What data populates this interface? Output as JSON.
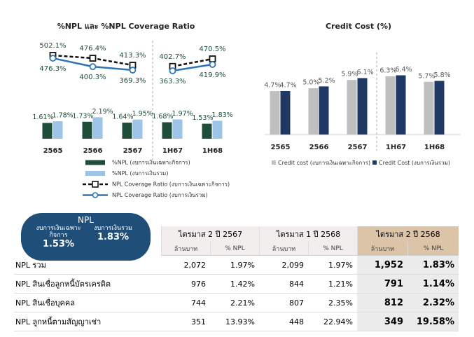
{
  "chart_data": [
    {
      "type": "combo",
      "title": "%NPL และ %NPL Coverage Ratio",
      "categories": [
        "2565",
        "2566",
        "2567",
        "1H67",
        "1H68"
      ],
      "divider_before": "1H67",
      "series": [
        {
          "name": "%NPL (งบการเงินเฉพาะกิจการ)",
          "type": "bar",
          "color": "#1e4d3a",
          "values": [
            1.61,
            1.73,
            1.64,
            1.68,
            1.53
          ],
          "value_labels": [
            "1.61%",
            "1.73%",
            "1.64%",
            "1.68%",
            "1.53%"
          ]
        },
        {
          "name": "%NPL (งบการเงินรวม)",
          "type": "bar",
          "color": "#9dc3e6",
          "values": [
            1.78,
            2.19,
            1.95,
            1.97,
            1.83
          ],
          "value_labels": [
            "1.78%",
            "2.19%",
            "1.95%",
            "1.97%",
            "1.83%"
          ]
        },
        {
          "name": "NPL Coverage Ratio (งบการเงินเฉพาะกิจการ)",
          "type": "line",
          "style": "dashed",
          "marker": "square",
          "color": "#111111",
          "values": [
            502.1,
            476.4,
            413.3,
            402.7,
            470.5
          ],
          "value_labels": [
            "502.1%",
            "476.4%",
            "413.3%",
            "402.7%",
            "470.5%"
          ]
        },
        {
          "name": "NPL Coverage Ratio (งบการเงินรวม)",
          "type": "line",
          "style": "solid",
          "marker": "circle",
          "color": "#2e75b6",
          "values": [
            476.3,
            400.3,
            369.3,
            363.3,
            419.9
          ],
          "value_labels": [
            "476.3%",
            "400.3%",
            "369.3%",
            "363.3%",
            "419.9%"
          ]
        }
      ]
    },
    {
      "type": "bar",
      "title": "Credit Cost (%)",
      "categories": [
        "2565",
        "2566",
        "2567",
        "1H67",
        "1H68"
      ],
      "divider_before": "1H67",
      "series": [
        {
          "name": "Credit cost (งบการเงินเฉพาะกิจการ)",
          "type": "bar",
          "color": "#bfbfbf",
          "values": [
            4.7,
            5.0,
            5.9,
            6.3,
            5.7
          ],
          "value_labels": [
            "4.7%",
            "5.0%",
            "5.9%",
            "6.3%",
            "5.7%"
          ]
        },
        {
          "name": "Credit Cost (งบการเงินรวม)",
          "type": "bar",
          "color": "#1f3864",
          "values": [
            4.7,
            5.2,
            6.1,
            6.4,
            5.8
          ],
          "value_labels": [
            "4.7%",
            "5.2%",
            "6.1%",
            "6.4%",
            "5.8%"
          ]
        }
      ]
    }
  ],
  "npl_panel": {
    "title": "NPL",
    "items": [
      {
        "label": "งบการเงินเฉพาะกิจการ",
        "value": "1.53%"
      },
      {
        "label": "งบการเงินรวม",
        "value": "1.83%"
      }
    ]
  },
  "table": {
    "groups": [
      "ไตรมาส 2 ปี 2567",
      "ไตรมาส 1 ปี 2568",
      "ไตรมาส 2 ปี 2568"
    ],
    "subheaders": [
      "ล้านบาท",
      "% NPL"
    ],
    "rows": [
      [
        "NPL รวม",
        "2,072",
        "1.97%",
        "2,099",
        "1.97%",
        "1,952",
        "1.83%"
      ],
      [
        "NPL สินเชื่อลูกหนี้บัตรเครดิต",
        "976",
        "1.42%",
        "844",
        "1.21%",
        "791",
        "1.14%"
      ],
      [
        "NPL สินเชื่อบุคคล",
        "744",
        "2.21%",
        "807",
        "2.35%",
        "812",
        "2.32%"
      ],
      [
        "NPL ลูกหนี้ตามสัญญาเช่า",
        "351",
        "13.93%",
        "448",
        "22.94%",
        "349",
        "19.58%"
      ]
    ]
  }
}
